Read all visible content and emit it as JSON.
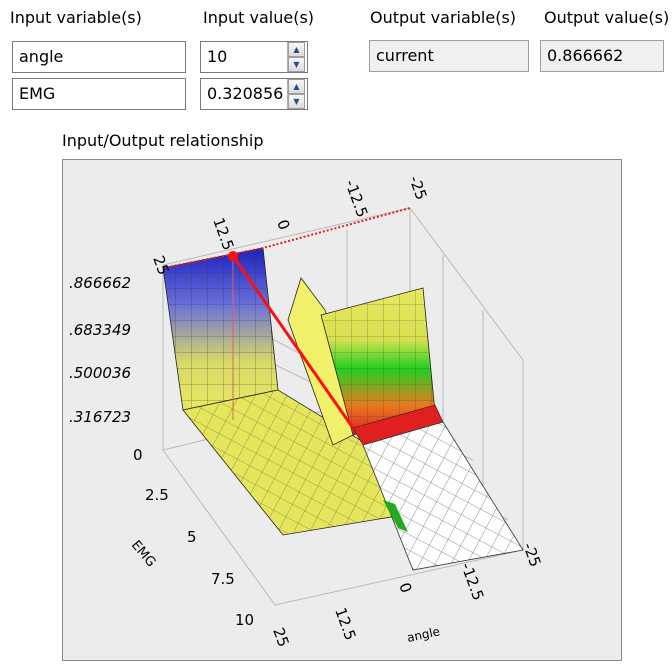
{
  "headers": {
    "input_vars": "Input variable(s)",
    "input_vals": "Input value(s)",
    "output_vars": "Output variable(s)",
    "output_vals": "Output value(s)"
  },
  "inputs": [
    {
      "name": "angle",
      "value": "10"
    },
    {
      "name": "EMG",
      "value": "0.320856"
    }
  ],
  "outputs": [
    {
      "name": "current",
      "value": "0.866662"
    }
  ],
  "plot": {
    "title": "Input/Output relationship",
    "z_ticks": [
      ".866662",
      ".683349",
      ".500036",
      ".316723"
    ],
    "emg_ticks": [
      "0",
      "2.5",
      "5",
      "7.5",
      "10"
    ],
    "emg_label": "EMG",
    "angle_ticks_front": [
      "25",
      "12.5",
      "0",
      "-12.5",
      "-25"
    ],
    "angle_ticks_top": [
      "25",
      "12.5",
      "0",
      "-12.5",
      "-25"
    ],
    "angle_label": "angle",
    "colors": {
      "high": "#2a32c8",
      "mid": "#e8e860",
      "green": "#22cc22",
      "red": "#e02020",
      "marker": "#ff1010"
    }
  }
}
